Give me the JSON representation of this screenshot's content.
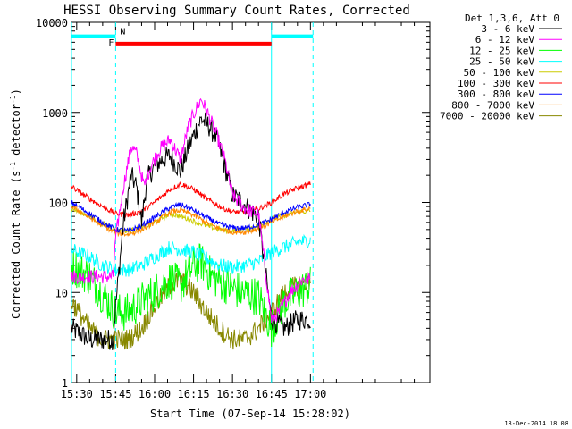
{
  "chart_data": {
    "type": "line",
    "title": "HESSI Observing Summary Count Rates, Corrected",
    "xlabel": "Start Time (07-Sep-14 15:28:02)",
    "ylabel_main": "Corrected Count Rate (s",
    "ylabel_sup1": "-1",
    "ylabel_mid": " detector",
    "ylabel_sup2": "-1",
    "ylabel_end": ")",
    "yscale": "log",
    "ylim": [
      1,
      10000
    ],
    "xlim_minutes": [
      928,
      1066
    ],
    "y_ticks": [
      {
        "value": 1,
        "label": "1"
      },
      {
        "value": 10,
        "label": "10"
      },
      {
        "value": 100,
        "label": "100"
      },
      {
        "value": 1000,
        "label": "1000"
      },
      {
        "value": 10000,
        "label": "10000"
      }
    ],
    "x_ticks": [
      {
        "value": 930,
        "label": "15:30"
      },
      {
        "value": 945,
        "label": "15:45"
      },
      {
        "value": 960,
        "label": "16:00"
      },
      {
        "value": 975,
        "label": "16:15"
      },
      {
        "value": 990,
        "label": "16:30"
      },
      {
        "value": 1005,
        "label": "16:45"
      },
      {
        "value": 1020,
        "label": "17:00"
      }
    ],
    "legend_title": "Det 1,3,6, Att 0",
    "legend_position": "outside-right",
    "series": [
      {
        "name": "3 - 6 keV",
        "color": "#000000",
        "points": [
          [
            928,
            4
          ],
          [
            935,
            3
          ],
          [
            944,
            3
          ],
          [
            945,
            7
          ],
          [
            948,
            60
          ],
          [
            951,
            200
          ],
          [
            953,
            150
          ],
          [
            955,
            60
          ],
          [
            957,
            180
          ],
          [
            960,
            250
          ],
          [
            963,
            300
          ],
          [
            966,
            330
          ],
          [
            970,
            220
          ],
          [
            973,
            400
          ],
          [
            976,
            650
          ],
          [
            978,
            850
          ],
          [
            981,
            700
          ],
          [
            984,
            500
          ],
          [
            987,
            250
          ],
          [
            990,
            120
          ],
          [
            994,
            100
          ],
          [
            997,
            80
          ],
          [
            1000,
            70
          ],
          [
            1005,
            5
          ],
          [
            1010,
            4
          ],
          [
            1015,
            5
          ],
          [
            1020,
            5
          ]
        ]
      },
      {
        "name": "6 - 12 keV",
        "color": "#ff00ff",
        "points": [
          [
            928,
            15
          ],
          [
            935,
            15
          ],
          [
            944,
            15
          ],
          [
            945,
            40
          ],
          [
            948,
            150
          ],
          [
            951,
            420
          ],
          [
            953,
            350
          ],
          [
            956,
            150
          ],
          [
            958,
            230
          ],
          [
            961,
            350
          ],
          [
            963,
            420
          ],
          [
            966,
            500
          ],
          [
            970,
            300
          ],
          [
            973,
            700
          ],
          [
            976,
            1100
          ],
          [
            978,
            1400
          ],
          [
            981,
            900
          ],
          [
            984,
            550
          ],
          [
            987,
            300
          ],
          [
            990,
            120
          ],
          [
            994,
            90
          ],
          [
            997,
            80
          ],
          [
            1000,
            75
          ],
          [
            1005,
            5
          ],
          [
            1008,
            6
          ],
          [
            1012,
            10
          ],
          [
            1017,
            14
          ],
          [
            1020,
            14
          ]
        ]
      },
      {
        "name": "12 - 25 keV",
        "color": "#00ff00",
        "points": [
          [
            928,
            20
          ],
          [
            935,
            15
          ],
          [
            945,
            6
          ],
          [
            950,
            6
          ],
          [
            955,
            8
          ],
          [
            960,
            10
          ],
          [
            966,
            14
          ],
          [
            970,
            12
          ],
          [
            975,
            20
          ],
          [
            978,
            22
          ],
          [
            982,
            15
          ],
          [
            988,
            12
          ],
          [
            994,
            10
          ],
          [
            1000,
            9
          ],
          [
            1005,
            4
          ],
          [
            1010,
            8
          ],
          [
            1015,
            10
          ],
          [
            1020,
            12
          ]
        ]
      },
      {
        "name": "25 - 50 keV",
        "color": "#00ffff",
        "points": [
          [
            928,
            30
          ],
          [
            935,
            25
          ],
          [
            940,
            20
          ],
          [
            945,
            18
          ],
          [
            950,
            18
          ],
          [
            955,
            20
          ],
          [
            960,
            25
          ],
          [
            966,
            32
          ],
          [
            970,
            30
          ],
          [
            975,
            28
          ],
          [
            980,
            24
          ],
          [
            985,
            20
          ],
          [
            990,
            19
          ],
          [
            995,
            20
          ],
          [
            1000,
            22
          ],
          [
            1005,
            28
          ],
          [
            1010,
            32
          ],
          [
            1015,
            36
          ],
          [
            1020,
            38
          ]
        ]
      },
      {
        "name": "50 - 100 keV",
        "color": "#cccc00",
        "points": [
          [
            928,
            85
          ],
          [
            935,
            70
          ],
          [
            940,
            58
          ],
          [
            945,
            50
          ],
          [
            950,
            48
          ],
          [
            955,
            52
          ],
          [
            960,
            60
          ],
          [
            966,
            75
          ],
          [
            970,
            70
          ],
          [
            975,
            62
          ],
          [
            980,
            55
          ],
          [
            985,
            50
          ],
          [
            990,
            48
          ],
          [
            995,
            50
          ],
          [
            1000,
            55
          ],
          [
            1005,
            65
          ],
          [
            1010,
            72
          ],
          [
            1015,
            78
          ],
          [
            1020,
            80
          ]
        ]
      },
      {
        "name": "100 - 300 keV",
        "color": "#ff0000",
        "points": [
          [
            928,
            150
          ],
          [
            935,
            110
          ],
          [
            940,
            90
          ],
          [
            945,
            75
          ],
          [
            950,
            72
          ],
          [
            955,
            80
          ],
          [
            960,
            100
          ],
          [
            966,
            140
          ],
          [
            970,
            160
          ],
          [
            975,
            140
          ],
          [
            980,
            110
          ],
          [
            985,
            90
          ],
          [
            990,
            78
          ],
          [
            995,
            78
          ],
          [
            1000,
            85
          ],
          [
            1005,
            100
          ],
          [
            1010,
            125
          ],
          [
            1015,
            145
          ],
          [
            1020,
            160
          ]
        ]
      },
      {
        "name": "300 - 800 keV",
        "color": "#0000ff",
        "points": [
          [
            928,
            100
          ],
          [
            935,
            75
          ],
          [
            940,
            60
          ],
          [
            945,
            50
          ],
          [
            950,
            48
          ],
          [
            955,
            55
          ],
          [
            960,
            68
          ],
          [
            966,
            88
          ],
          [
            970,
            95
          ],
          [
            975,
            82
          ],
          [
            980,
            68
          ],
          [
            985,
            57
          ],
          [
            990,
            52
          ],
          [
            995,
            52
          ],
          [
            1000,
            56
          ],
          [
            1005,
            65
          ],
          [
            1010,
            78
          ],
          [
            1015,
            88
          ],
          [
            1020,
            95
          ]
        ]
      },
      {
        "name": "800 - 7000 keV",
        "color": "#ff8800",
        "points": [
          [
            928,
            90
          ],
          [
            935,
            68
          ],
          [
            940,
            55
          ],
          [
            945,
            46
          ],
          [
            950,
            44
          ],
          [
            955,
            50
          ],
          [
            960,
            60
          ],
          [
            966,
            78
          ],
          [
            970,
            82
          ],
          [
            975,
            72
          ],
          [
            980,
            60
          ],
          [
            985,
            51
          ],
          [
            990,
            47
          ],
          [
            995,
            47
          ],
          [
            1000,
            51
          ],
          [
            1005,
            60
          ],
          [
            1010,
            70
          ],
          [
            1015,
            80
          ],
          [
            1020,
            86
          ]
        ]
      },
      {
        "name": "7000 - 20000 keV",
        "color": "#888800",
        "points": [
          [
            928,
            8
          ],
          [
            935,
            4
          ],
          [
            940,
            3
          ],
          [
            945,
            3
          ],
          [
            950,
            3
          ],
          [
            955,
            4
          ],
          [
            960,
            7
          ],
          [
            966,
            12
          ],
          [
            970,
            14
          ],
          [
            975,
            10
          ],
          [
            980,
            6
          ],
          [
            985,
            4
          ],
          [
            990,
            3
          ],
          [
            995,
            3
          ],
          [
            1000,
            4
          ],
          [
            1005,
            6
          ],
          [
            1010,
            10
          ],
          [
            1015,
            12
          ],
          [
            1020,
            14
          ]
        ]
      }
    ],
    "flags": [
      {
        "label": "",
        "color": "#00ffff",
        "y": 7000,
        "start": 928,
        "end": 945
      },
      {
        "label": "",
        "color": "#00ffff",
        "y": 7000,
        "start": 1005,
        "end": 1021
      },
      {
        "label": "F",
        "color": "#ff0000",
        "y": 5800,
        "start": 945,
        "end": 1005
      },
      {
        "label": "N",
        "color": "#00ffff",
        "y": 7000,
        "start": 945,
        "end": 945
      }
    ],
    "vlines_dashed": [
      945,
      1021
    ],
    "vlines_solid": [
      928,
      1005
    ]
  },
  "timestamp": "18-Dec-2014 18:08"
}
